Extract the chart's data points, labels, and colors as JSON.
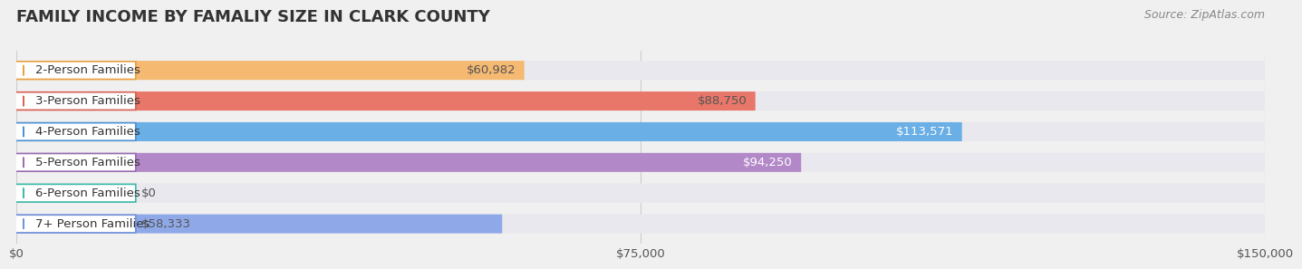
{
  "title": "FAMILY INCOME BY FAMALIY SIZE IN CLARK COUNTY",
  "source": "Source: ZipAtlas.com",
  "categories": [
    "2-Person Families",
    "3-Person Families",
    "4-Person Families",
    "5-Person Families",
    "6-Person Families",
    "7+ Person Families"
  ],
  "values": [
    60982,
    88750,
    113571,
    94250,
    0,
    58333
  ],
  "bar_colors": [
    "#f5b971",
    "#e8776a",
    "#6aafe6",
    "#b388c8",
    "#5ecbbc",
    "#8fa8e8"
  ],
  "label_colors": [
    "#e8a040",
    "#d95f52",
    "#4a90d0",
    "#9b6bb0",
    "#3ab8a8",
    "#7090d8"
  ],
  "value_colors": [
    "#555555",
    "#555555",
    "#ffffff",
    "#ffffff",
    "#555555",
    "#555555"
  ],
  "xlim": [
    0,
    150000
  ],
  "xticks": [
    0,
    75000,
    150000
  ],
  "xtick_labels": [
    "$0",
    "$75,000",
    "$150,000"
  ],
  "background_color": "#f0f0f0",
  "bar_bg_color": "#e8e8ee",
  "label_bg_color": "#ffffff",
  "bar_height": 0.62,
  "title_fontsize": 13,
  "label_fontsize": 9.5,
  "value_fontsize": 9.5,
  "source_fontsize": 9
}
